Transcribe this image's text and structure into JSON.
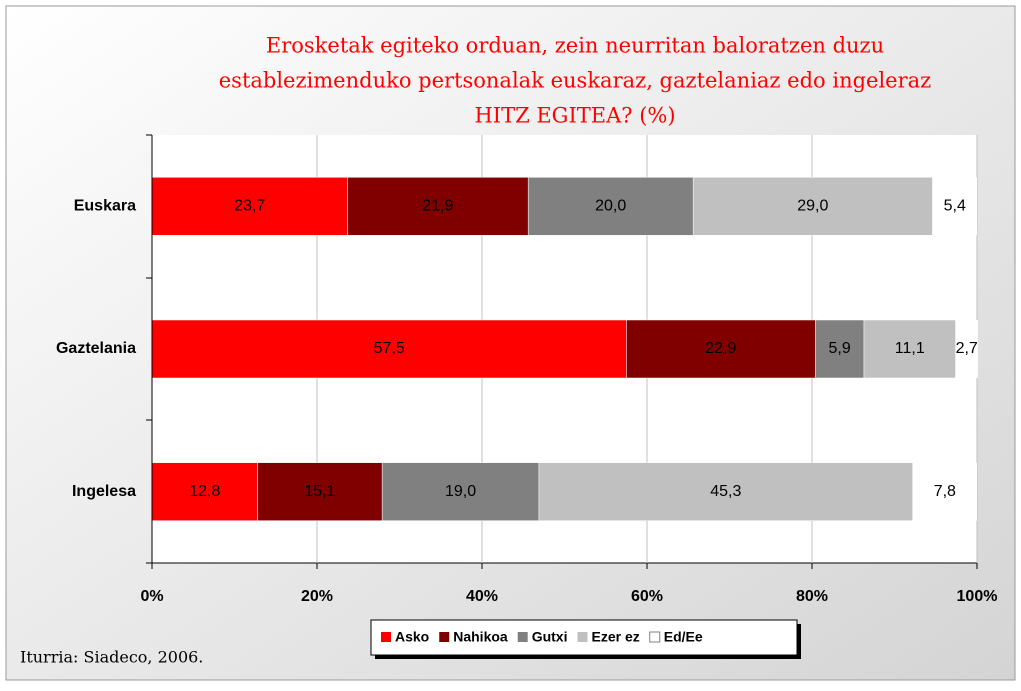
{
  "chart_data": {
    "type": "stacked_barh",
    "title": [
      "Erosketak egiteko orduan, zein neurritan baloratzen duzu",
      "establezimenduko pertsonalak euskaraz, gaztelaniaz edo ingeleraz",
      "HITZ EGITEA? (%)"
    ],
    "categories": [
      "Euskara",
      "Gaztelania",
      "Ingelesa"
    ],
    "series": [
      {
        "name": "Asko",
        "color": "#ff0000",
        "values": [
          23.7,
          57.5,
          12.8
        ],
        "value_labels": [
          "23,7",
          "57,5",
          "12,8"
        ]
      },
      {
        "name": "Nahikoa",
        "color": "#800000",
        "values": [
          21.9,
          22.9,
          15.1
        ],
        "value_labels": [
          "21,9",
          "22,9",
          "15,1"
        ]
      },
      {
        "name": "Gutxi",
        "color": "#808080",
        "values": [
          20.0,
          5.9,
          19.0
        ],
        "value_labels": [
          "20,0",
          "5,9",
          "19,0"
        ]
      },
      {
        "name": "Ezer ez",
        "color": "#c0c0c0",
        "values": [
          29.0,
          11.1,
          45.3
        ],
        "value_labels": [
          "29,0",
          "11,1",
          "45,3"
        ]
      },
      {
        "name": "Ed/Ee",
        "color": "#ffffff",
        "values": [
          5.4,
          2.7,
          7.8
        ],
        "value_labels": [
          "5,4",
          "2,7",
          "7,8"
        ]
      }
    ],
    "xlim": [
      0,
      100
    ],
    "xticks": [
      {
        "value": 0,
        "label": "0%"
      },
      {
        "value": 20,
        "label": "20%"
      },
      {
        "value": 40,
        "label": "40%"
      },
      {
        "value": 60,
        "label": "60%"
      },
      {
        "value": 80,
        "label": "80%"
      },
      {
        "value": 100,
        "label": "100%"
      }
    ],
    "grid": true,
    "legend": "bottom",
    "source": "Iturria: Siadeco, 2006."
  }
}
